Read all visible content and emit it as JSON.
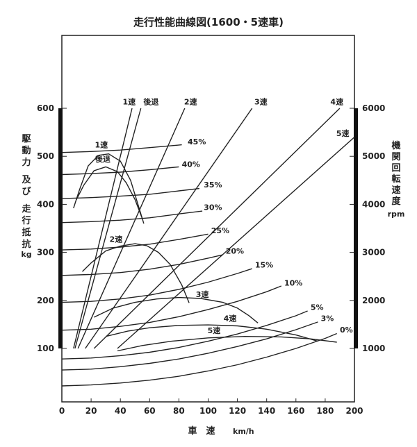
{
  "chart_data": {
    "type": "line",
    "title": "走行性能曲線図(1600・5速車)",
    "xlabel": "車　速",
    "xunit": "km/h",
    "ylabel_left": [
      "駆",
      "動",
      "力",
      " ",
      "及",
      "び",
      " ",
      "走",
      "行",
      "抵",
      "抗"
    ],
    "yunit_left": "kg",
    "ylabel_right": [
      "機",
      "関",
      "回",
      "転",
      "速",
      "度"
    ],
    "yunit_right": "rpm",
    "xlim": [
      0,
      200
    ],
    "xticks": [
      0,
      20,
      40,
      60,
      80,
      100,
      120,
      140,
      160,
      180,
      200
    ],
    "ylim_left": [
      0,
      600
    ],
    "yticks_left": [
      100,
      200,
      300,
      400,
      500,
      600
    ],
    "ylim_right": [
      1000,
      6000
    ],
    "yticks_right": [
      1000,
      2000,
      3000,
      4000,
      5000,
      6000
    ],
    "grid": false,
    "drive_force": [
      {
        "name": "1速",
        "x": [
          8,
          12,
          18,
          25,
          32,
          40,
          47,
          52,
          56
        ],
        "y": [
          392,
          430,
          480,
          502,
          505,
          490,
          450,
          400,
          360
        ]
      },
      {
        "name": "後退",
        "x": [
          10,
          15,
          22,
          30,
          38,
          44,
          50,
          55
        ],
        "y": [
          410,
          440,
          470,
          478,
          468,
          445,
          410,
          370
        ]
      },
      {
        "name": "2速",
        "x": [
          14,
          20,
          30,
          40,
          50,
          58,
          66,
          74,
          82,
          87
        ],
        "y": [
          260,
          278,
          303,
          313,
          318,
          314,
          300,
          275,
          232,
          195
        ]
      },
      {
        "name": "3速",
        "x": [
          22,
          35,
          50,
          65,
          80,
          95,
          110,
          120,
          128,
          134
        ],
        "y": [
          165,
          184,
          196,
          203,
          206,
          204,
          196,
          184,
          168,
          153
        ]
      },
      {
        "name": "4速",
        "x": [
          30,
          45,
          60,
          80,
          100,
          120,
          140,
          160,
          175
        ],
        "y": [
          125,
          136,
          143,
          148,
          149,
          147,
          140,
          128,
          115
        ]
      },
      {
        "name": "5速",
        "x": [
          38,
          55,
          75,
          100,
          125,
          150,
          170,
          188
        ],
        "y": [
          95,
          106,
          115,
          122,
          125,
          124,
          120,
          113
        ]
      }
    ],
    "running_resistance": [
      {
        "name": "45%",
        "x": [
          0,
          20,
          40,
          60,
          82
        ],
        "y": [
          508,
          510,
          513,
          518,
          524
        ]
      },
      {
        "name": "40%",
        "x": [
          0,
          20,
          40,
          60,
          80
        ],
        "y": [
          462,
          464,
          467,
          472,
          478
        ]
      },
      {
        "name": "35%",
        "x": [
          0,
          20,
          40,
          60,
          80,
          94
        ],
        "y": [
          412,
          414,
          417,
          421,
          428,
          433
        ]
      },
      {
        "name": "30%",
        "x": [
          0,
          20,
          40,
          60,
          80,
          96
        ],
        "y": [
          362,
          364,
          367,
          372,
          380,
          386
        ]
      },
      {
        "name": "25%",
        "x": [
          0,
          20,
          40,
          60,
          80,
          100
        ],
        "y": [
          305,
          307,
          311,
          317,
          327,
          338
        ]
      },
      {
        "name": "20%",
        "x": [
          0,
          20,
          40,
          60,
          80,
          100,
          110
        ],
        "y": [
          252,
          254,
          258,
          265,
          275,
          288,
          295
        ]
      },
      {
        "name": "15%",
        "x": [
          0,
          20,
          40,
          60,
          80,
          100,
          120,
          130
        ],
        "y": [
          196,
          198,
          203,
          211,
          223,
          238,
          256,
          266
        ]
      },
      {
        "name": "10%",
        "x": [
          0,
          20,
          40,
          60,
          80,
          100,
          120,
          140,
          150
        ],
        "y": [
          138,
          140,
          146,
          154,
          166,
          181,
          198,
          218,
          230
        ]
      },
      {
        "name": "5%",
        "x": [
          0,
          20,
          40,
          60,
          80,
          100,
          120,
          140,
          160,
          168
        ],
        "y": [
          78,
          80,
          85,
          92,
          102,
          115,
          130,
          148,
          168,
          178
        ]
      },
      {
        "name": "3%",
        "x": [
          0,
          20,
          40,
          60,
          80,
          100,
          120,
          140,
          160,
          175
        ],
        "y": [
          55,
          57,
          62,
          69,
          78,
          90,
          104,
          120,
          139,
          155
        ]
      },
      {
        "name": "0%",
        "x": [
          0,
          20,
          40,
          60,
          80,
          100,
          120,
          140,
          160,
          180,
          188
        ],
        "y": [
          22,
          24,
          28,
          34,
          42,
          53,
          66,
          82,
          100,
          121,
          131
        ]
      }
    ],
    "engine_speed": [
      {
        "name": "1速",
        "x": [
          8,
          48
        ],
        "rpm": [
          1000,
          6000
        ]
      },
      {
        "name": "後退",
        "x": [
          9,
          54
        ],
        "rpm": [
          1000,
          6000
        ]
      },
      {
        "name": "2速",
        "x": [
          11,
          84
        ],
        "rpm": [
          1000,
          6000
        ]
      },
      {
        "name": "3速",
        "x": [
          16,
          130
        ],
        "rpm": [
          1000,
          6000
        ]
      },
      {
        "name": "4速",
        "x": [
          22,
          190
        ],
        "rpm": [
          1000,
          6000
        ]
      },
      {
        "name": "5速",
        "x": [
          38,
          200
        ],
        "rpm": [
          1000,
          5400
        ]
      }
    ],
    "labels": {
      "top_gear": [
        {
          "text": "1速",
          "x": 46,
          "rpm": 6080
        },
        {
          "text": "後退",
          "x": 61,
          "rpm": 6080
        },
        {
          "text": "2速",
          "x": 88,
          "rpm": 6080
        },
        {
          "text": "3速",
          "x": 136,
          "rpm": 6080
        },
        {
          "text": "4速",
          "x": 188,
          "rpm": 6080
        },
        {
          "text": "5速",
          "x": 192,
          "rpm": 5420
        }
      ],
      "drive": [
        {
          "text": "1速",
          "x": 27,
          "y": 518
        },
        {
          "text": "後退",
          "x": 28,
          "y": 489
        },
        {
          "text": "2速",
          "x": 37,
          "y": 322
        },
        {
          "text": "3速",
          "x": 96,
          "y": 207
        },
        {
          "text": "4速",
          "x": 115,
          "y": 157
        },
        {
          "text": "5速",
          "x": 104,
          "y": 132
        }
      ],
      "resistance": [
        {
          "text": "45%",
          "x": 86,
          "y": 525
        },
        {
          "text": "40%",
          "x": 82,
          "y": 478
        },
        {
          "text": "35%",
          "x": 97,
          "y": 435
        },
        {
          "text": "30%",
          "x": 97,
          "y": 388
        },
        {
          "text": "25%",
          "x": 102,
          "y": 340
        },
        {
          "text": "20%",
          "x": 112,
          "y": 297
        },
        {
          "text": "15%",
          "x": 132,
          "y": 268
        },
        {
          "text": "10%",
          "x": 152,
          "y": 231
        },
        {
          "text": "5%",
          "x": 170,
          "y": 180
        },
        {
          "text": "3%",
          "x": 177,
          "y": 157
        },
        {
          "text": "0%",
          "x": 190,
          "y": 133
        }
      ]
    }
  }
}
